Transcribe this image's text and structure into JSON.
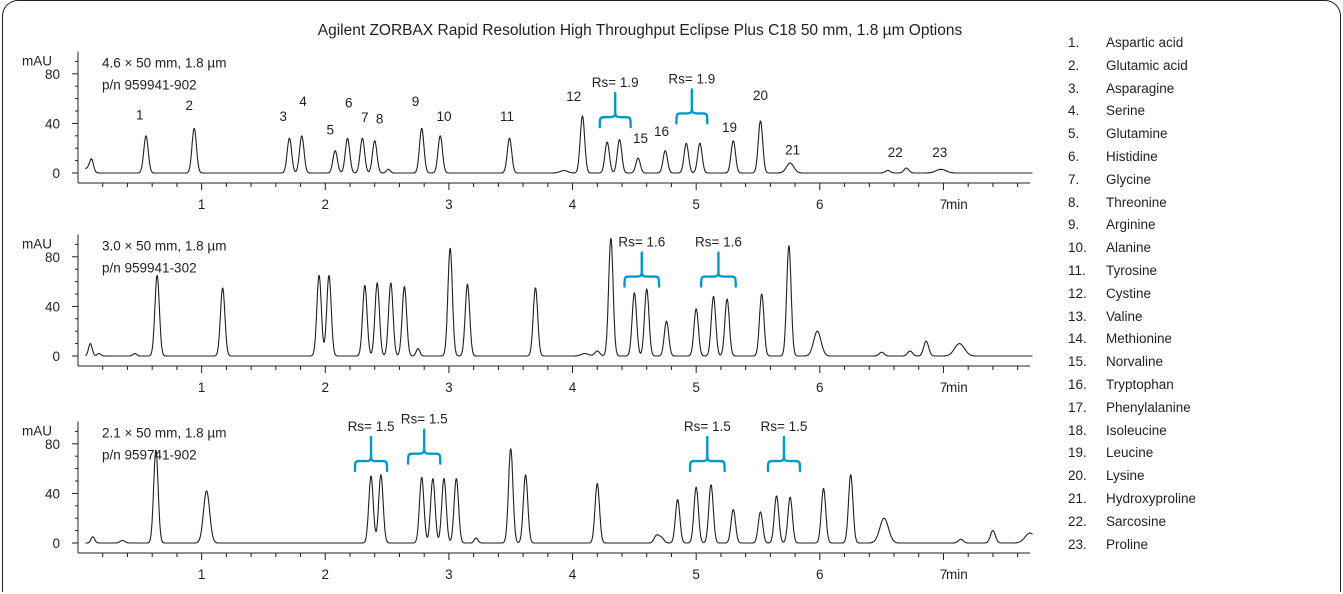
{
  "chart_data": {
    "type": "line",
    "title": "Agilent ZORBAX Rapid Resolution High Throughput Eclipse Plus C18 50 mm, 1.8 µm Options",
    "xlabel": "min",
    "ylabel": "mAU",
    "xlim": [
      0,
      7.7
    ],
    "ylim": [
      -5,
      98
    ],
    "xticks": [
      "1",
      "2",
      "3",
      "4",
      "5",
      "6",
      "7"
    ],
    "yticks": [
      "0",
      "40",
      "80"
    ],
    "line_color": "#231f20",
    "bracket_color": "#0099cc",
    "panels": [
      {
        "label_line1": "4.6 × 50 mm, 1.8 µm",
        "label_line2": "p/n 959941-902",
        "peaks": [
          {
            "t": 0.08,
            "h": 4,
            "w": 0.03
          },
          {
            "t": 0.11,
            "h": 9,
            "w": 0.015
          },
          {
            "t": 0.55,
            "h": 30,
            "w": 0.018
          },
          {
            "t": 0.94,
            "h": 36,
            "w": 0.018
          },
          {
            "t": 1.71,
            "h": 28,
            "w": 0.018
          },
          {
            "t": 1.81,
            "h": 30,
            "w": 0.018
          },
          {
            "t": 2.08,
            "h": 18,
            "w": 0.018
          },
          {
            "t": 2.18,
            "h": 28,
            "w": 0.018
          },
          {
            "t": 2.3,
            "h": 28,
            "w": 0.018
          },
          {
            "t": 2.4,
            "h": 26,
            "w": 0.018
          },
          {
            "t": 2.51,
            "h": 3,
            "w": 0.015
          },
          {
            "t": 2.78,
            "h": 36,
            "w": 0.018
          },
          {
            "t": 2.93,
            "h": 30,
            "w": 0.018
          },
          {
            "t": 3.49,
            "h": 28,
            "w": 0.018
          },
          {
            "t": 3.93,
            "h": 2,
            "w": 0.03
          },
          {
            "t": 4.08,
            "h": 46,
            "w": 0.018
          },
          {
            "t": 4.28,
            "h": 25,
            "w": 0.018
          },
          {
            "t": 4.38,
            "h": 27,
            "w": 0.018
          },
          {
            "t": 4.53,
            "h": 12,
            "w": 0.018
          },
          {
            "t": 4.75,
            "h": 18,
            "w": 0.018
          },
          {
            "t": 4.92,
            "h": 24,
            "w": 0.018
          },
          {
            "t": 5.03,
            "h": 24,
            "w": 0.018
          },
          {
            "t": 5.3,
            "h": 26,
            "w": 0.018
          },
          {
            "t": 5.52,
            "h": 42,
            "w": 0.018
          },
          {
            "t": 5.76,
            "h": 8,
            "w": 0.03
          },
          {
            "t": 6.55,
            "h": 2,
            "w": 0.02
          },
          {
            "t": 6.7,
            "h": 4,
            "w": 0.02
          },
          {
            "t": 6.98,
            "h": 3,
            "w": 0.04
          }
        ],
        "peak_labels": [
          {
            "text": "1",
            "t": 0.5,
            "y": 43
          },
          {
            "text": "2",
            "t": 0.9,
            "y": 51
          },
          {
            "text": "3",
            "t": 1.66,
            "y": 42
          },
          {
            "text": "4",
            "t": 1.82,
            "y": 54
          },
          {
            "text": "5",
            "t": 2.04,
            "y": 31
          },
          {
            "text": "6",
            "t": 2.19,
            "y": 53
          },
          {
            "text": "7",
            "t": 2.32,
            "y": 41
          },
          {
            "text": "8",
            "t": 2.44,
            "y": 40
          },
          {
            "text": "9",
            "t": 2.73,
            "y": 54
          },
          {
            "text": "10",
            "t": 2.96,
            "y": 42
          },
          {
            "text": "11",
            "t": 3.47,
            "y": 42
          },
          {
            "text": "12",
            "t": 4.01,
            "y": 58
          },
          {
            "text": "15",
            "t": 4.55,
            "y": 24
          },
          {
            "text": "16",
            "t": 4.72,
            "y": 30
          },
          {
            "text": "19",
            "t": 5.27,
            "y": 33
          },
          {
            "text": "20",
            "t": 5.52,
            "y": 59
          },
          {
            "text": "21",
            "t": 5.78,
            "y": 15
          },
          {
            "text": "22",
            "t": 6.61,
            "y": 13
          },
          {
            "text": "23",
            "t": 6.97,
            "y": 13
          }
        ],
        "brackets": [
          {
            "label": "Rs= 1.9",
            "t_left": 4.22,
            "t_right": 4.47,
            "y": 37
          },
          {
            "label": "Rs= 1.9",
            "t_left": 4.84,
            "t_right": 5.09,
            "y": 40
          }
        ]
      },
      {
        "label_line1": "3.0 × 50 mm, 1.8 µm",
        "label_line2": "p/n 959941-302",
        "peaks": [
          {
            "t": 0.1,
            "h": 10,
            "w": 0.015
          },
          {
            "t": 0.17,
            "h": 2,
            "w": 0.015
          },
          {
            "t": 0.46,
            "h": 2,
            "w": 0.015
          },
          {
            "t": 0.64,
            "h": 65,
            "w": 0.018
          },
          {
            "t": 1.17,
            "h": 55,
            "w": 0.018
          },
          {
            "t": 1.95,
            "h": 65,
            "w": 0.018
          },
          {
            "t": 2.03,
            "h": 65,
            "w": 0.018
          },
          {
            "t": 2.32,
            "h": 57,
            "w": 0.018
          },
          {
            "t": 2.42,
            "h": 59,
            "w": 0.018
          },
          {
            "t": 2.53,
            "h": 59,
            "w": 0.018
          },
          {
            "t": 2.64,
            "h": 56,
            "w": 0.018
          },
          {
            "t": 2.75,
            "h": 6,
            "w": 0.015
          },
          {
            "t": 3.01,
            "h": 87,
            "w": 0.018
          },
          {
            "t": 3.15,
            "h": 58,
            "w": 0.018
          },
          {
            "t": 3.7,
            "h": 55,
            "w": 0.018
          },
          {
            "t": 4.1,
            "h": 2,
            "w": 0.03
          },
          {
            "t": 4.2,
            "h": 4,
            "w": 0.02
          },
          {
            "t": 4.31,
            "h": 95,
            "w": 0.018
          },
          {
            "t": 4.5,
            "h": 51,
            "w": 0.018
          },
          {
            "t": 4.6,
            "h": 54,
            "w": 0.018
          },
          {
            "t": 4.76,
            "h": 28,
            "w": 0.018
          },
          {
            "t": 5.0,
            "h": 38,
            "w": 0.018
          },
          {
            "t": 5.14,
            "h": 48,
            "w": 0.018
          },
          {
            "t": 5.25,
            "h": 46,
            "w": 0.018
          },
          {
            "t": 5.53,
            "h": 50,
            "w": 0.018
          },
          {
            "t": 5.75,
            "h": 89,
            "w": 0.018
          },
          {
            "t": 5.98,
            "h": 20,
            "w": 0.03
          },
          {
            "t": 6.5,
            "h": 3,
            "w": 0.02
          },
          {
            "t": 6.73,
            "h": 4,
            "w": 0.02
          },
          {
            "t": 6.86,
            "h": 12,
            "w": 0.02
          },
          {
            "t": 7.13,
            "h": 10,
            "w": 0.04
          }
        ],
        "peak_labels": [],
        "brackets": [
          {
            "label": "Rs= 1.6",
            "t_left": 4.42,
            "t_right": 4.7,
            "y": 56
          },
          {
            "label": "Rs= 1.6",
            "t_left": 5.04,
            "t_right": 5.32,
            "y": 56
          }
        ]
      },
      {
        "label_line1": "2.1 × 50 mm, 1.8 µm",
        "label_line2": "p/n 959741-902",
        "peaks": [
          {
            "t": 0.12,
            "h": 5,
            "w": 0.015
          },
          {
            "t": 0.36,
            "h": 2,
            "w": 0.02
          },
          {
            "t": 0.63,
            "h": 75,
            "w": 0.018
          },
          {
            "t": 1.04,
            "h": 42,
            "w": 0.025
          },
          {
            "t": 2.37,
            "h": 54,
            "w": 0.018
          },
          {
            "t": 2.45,
            "h": 55,
            "w": 0.018
          },
          {
            "t": 2.78,
            "h": 53,
            "w": 0.018
          },
          {
            "t": 2.87,
            "h": 52,
            "w": 0.018
          },
          {
            "t": 2.96,
            "h": 52,
            "w": 0.018
          },
          {
            "t": 3.06,
            "h": 52,
            "w": 0.018
          },
          {
            "t": 3.22,
            "h": 4,
            "w": 0.015
          },
          {
            "t": 3.5,
            "h": 76,
            "w": 0.018
          },
          {
            "t": 3.62,
            "h": 55,
            "w": 0.018
          },
          {
            "t": 4.2,
            "h": 48,
            "w": 0.018
          },
          {
            "t": 4.68,
            "h": 6,
            "w": 0.02
          },
          {
            "t": 4.72,
            "h": 4,
            "w": 0.02
          },
          {
            "t": 4.85,
            "h": 35,
            "w": 0.018
          },
          {
            "t": 5.0,
            "h": 45,
            "w": 0.018
          },
          {
            "t": 5.12,
            "h": 47,
            "w": 0.018
          },
          {
            "t": 5.3,
            "h": 27,
            "w": 0.018
          },
          {
            "t": 5.52,
            "h": 25,
            "w": 0.018
          },
          {
            "t": 5.65,
            "h": 38,
            "w": 0.018
          },
          {
            "t": 5.76,
            "h": 37,
            "w": 0.018
          },
          {
            "t": 6.03,
            "h": 44,
            "w": 0.018
          },
          {
            "t": 6.25,
            "h": 55,
            "w": 0.018
          },
          {
            "t": 6.52,
            "h": 20,
            "w": 0.035
          },
          {
            "t": 7.14,
            "h": 3,
            "w": 0.02
          },
          {
            "t": 7.4,
            "h": 10,
            "w": 0.02
          },
          {
            "t": 7.7,
            "h": 8,
            "w": 0.04
          }
        ],
        "peak_labels": [],
        "brackets": [
          {
            "label": "Rs= 1.5",
            "t_left": 2.24,
            "t_right": 2.5,
            "y": 58
          },
          {
            "label": "Rs= 1.5",
            "t_left": 2.67,
            "t_right": 2.93,
            "y": 64
          },
          {
            "label": "Rs= 1.5",
            "t_left": 4.95,
            "t_right": 5.23,
            "y": 58
          },
          {
            "label": "Rs= 1.5",
            "t_left": 5.58,
            "t_right": 5.84,
            "y": 58
          }
        ]
      }
    ],
    "legend": [
      {
        "num": "1.",
        "name": "Aspartic acid"
      },
      {
        "num": "2.",
        "name": "Glutamic acid"
      },
      {
        "num": "3.",
        "name": "Asparagine"
      },
      {
        "num": "4.",
        "name": "Serine"
      },
      {
        "num": "5.",
        "name": "Glutamine"
      },
      {
        "num": "6.",
        "name": "Histidine"
      },
      {
        "num": "7.",
        "name": "Glycine"
      },
      {
        "num": "8.",
        "name": "Threonine"
      },
      {
        "num": "9.",
        "name": "Arginine"
      },
      {
        "num": "10.",
        "name": "Alanine"
      },
      {
        "num": "11.",
        "name": "Tyrosine"
      },
      {
        "num": "12.",
        "name": "Cystine"
      },
      {
        "num": "13.",
        "name": "Valine"
      },
      {
        "num": "14.",
        "name": "Methionine"
      },
      {
        "num": "15.",
        "name": "Norvaline"
      },
      {
        "num": "16.",
        "name": "Tryptophan"
      },
      {
        "num": "17.",
        "name": "Phenylalanine"
      },
      {
        "num": "18.",
        "name": "Isoleucine"
      },
      {
        "num": "19.",
        "name": "Leucine"
      },
      {
        "num": "20.",
        "name": "Lysine"
      },
      {
        "num": "21.",
        "name": "Hydroxyproline"
      },
      {
        "num": "22.",
        "name": "Sarcosine"
      },
      {
        "num": "23.",
        "name": "Proline"
      }
    ]
  }
}
